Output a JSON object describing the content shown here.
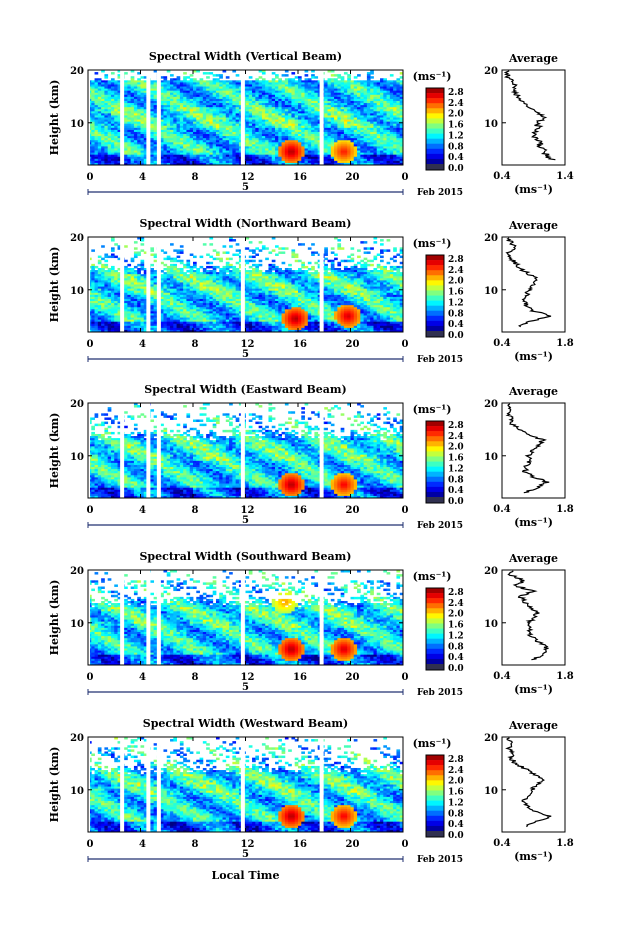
{
  "figure": {
    "xlabel": "Local Time",
    "ylabel": "Height (km)",
    "date_label": "Feb 2015",
    "day_label": "5",
    "x_ticks": [
      "0",
      "4",
      "8",
      "12",
      "16",
      "20",
      "0"
    ],
    "y_ticks": [
      "20",
      "10"
    ],
    "colorbar_unit": "(ms⁻¹)",
    "colorbar_ticks": [
      "2.8",
      "2.4",
      "2.0",
      "1.6",
      "1.2",
      "0.8",
      "0.4",
      "0.0"
    ],
    "profile_title": "Average",
    "profile_xlabel": "(ms⁻¹)",
    "profile_y_ticks": [
      "20",
      "10"
    ]
  },
  "chart_data": [
    {
      "type": "heatmap",
      "title": "Spectral Width (Vertical Beam)",
      "xlabel": "Local Time",
      "ylabel": "Height (km)",
      "xlim": [
        0,
        24
      ],
      "ylim": [
        2,
        20
      ],
      "colorbar": {
        "min": 0.0,
        "max": 3.0,
        "unit": "(ms⁻¹)"
      },
      "hotspots": [
        [
          15.5,
          4.5,
          2.9
        ],
        [
          19.5,
          4.5,
          2.6
        ]
      ],
      "profile": {
        "title": "Average",
        "xlim": [
          0.4,
          1.4
        ],
        "x_ticks": [
          "0.4",
          "1.4"
        ],
        "heights": [
          3,
          4,
          5,
          6,
          7,
          8,
          9,
          10,
          11,
          12,
          13,
          14,
          15,
          16,
          17,
          18,
          19,
          20
        ],
        "values": [
          1.2,
          1.1,
          1.05,
          1.0,
          0.95,
          0.9,
          0.95,
          1.0,
          1.05,
          1.0,
          0.85,
          0.7,
          0.65,
          0.6,
          0.65,
          0.55,
          0.5,
          0.45
        ]
      }
    },
    {
      "type": "heatmap",
      "title": "Spectral Width (Northward Beam)",
      "xlabel": "Local Time",
      "ylabel": "Height (km)",
      "xlim": [
        0,
        24
      ],
      "ylim": [
        2,
        20
      ],
      "colorbar": {
        "min": 0.0,
        "max": 3.0,
        "unit": "(ms⁻¹)"
      },
      "hotspots": [
        [
          15.8,
          4.5,
          2.9
        ],
        [
          19.8,
          5.0,
          2.8
        ]
      ],
      "profile": {
        "title": "Average",
        "xlim": [
          0.4,
          1.8
        ],
        "x_ticks": [
          "0.4",
          "1.8"
        ],
        "heights": [
          3,
          4,
          5,
          6,
          7,
          8,
          9,
          10,
          11,
          12,
          13,
          14,
          15,
          16,
          17,
          18,
          19,
          20
        ],
        "values": [
          0.8,
          1.0,
          1.5,
          1.1,
          0.95,
          0.9,
          0.95,
          1.0,
          1.1,
          1.2,
          1.0,
          0.8,
          0.7,
          0.6,
          0.5,
          0.7,
          0.6,
          0.5
        ]
      }
    },
    {
      "type": "heatmap",
      "title": "Spectral Width (Eastward Beam)",
      "xlabel": "Local Time",
      "ylabel": "Height (km)",
      "xlim": [
        0,
        24
      ],
      "ylim": [
        2,
        20
      ],
      "colorbar": {
        "min": 0.0,
        "max": 3.0,
        "unit": "(ms⁻¹)"
      },
      "hotspots": [
        [
          15.5,
          4.5,
          2.9
        ],
        [
          19.5,
          4.5,
          2.7
        ]
      ],
      "profile": {
        "title": "Average",
        "xlim": [
          0.4,
          1.8
        ],
        "x_ticks": [
          "0.4",
          "1.8"
        ],
        "heights": [
          3,
          4,
          5,
          6,
          7,
          8,
          9,
          10,
          11,
          12,
          13,
          14,
          15,
          16,
          17,
          18,
          19,
          20
        ],
        "values": [
          0.9,
          1.2,
          1.4,
          1.1,
          0.9,
          0.95,
          1.0,
          1.0,
          1.1,
          1.2,
          1.3,
          1.0,
          0.8,
          0.6,
          0.6,
          0.55,
          0.6,
          0.55
        ]
      }
    },
    {
      "type": "heatmap",
      "title": "Spectral Width (Southward Beam)",
      "xlabel": "Local Time",
      "ylabel": "Height (km)",
      "xlim": [
        0,
        24
      ],
      "ylim": [
        2,
        20
      ],
      "colorbar": {
        "min": 0.0,
        "max": 3.0,
        "unit": "(ms⁻¹)"
      },
      "hotspots": [
        [
          15.5,
          5.0,
          2.9
        ],
        [
          19.5,
          5.0,
          2.8
        ],
        [
          15.0,
          14.0,
          2.2
        ]
      ],
      "profile": {
        "title": "Average",
        "xlim": [
          0.4,
          1.8
        ],
        "x_ticks": [
          "0.4",
          "1.8"
        ],
        "heights": [
          3,
          4,
          5,
          6,
          7,
          8,
          9,
          10,
          11,
          12,
          13,
          14,
          15,
          16,
          17,
          18,
          19,
          20
        ],
        "values": [
          1.1,
          1.3,
          1.4,
          1.3,
          1.1,
          1.0,
          1.0,
          1.0,
          1.1,
          1.2,
          1.0,
          0.9,
          0.8,
          1.1,
          0.7,
          0.9,
          0.6,
          0.6
        ]
      }
    },
    {
      "type": "heatmap",
      "title": "Spectral Width (Westward Beam)",
      "xlabel": "Local Time",
      "ylabel": "Height (km)",
      "xlim": [
        0,
        24
      ],
      "ylim": [
        2,
        20
      ],
      "colorbar": {
        "min": 0.0,
        "max": 3.0,
        "unit": "(ms⁻¹)"
      },
      "hotspots": [
        [
          15.5,
          5.0,
          2.9
        ],
        [
          19.5,
          5.0,
          2.7
        ]
      ],
      "profile": {
        "title": "Average",
        "xlim": [
          0.4,
          1.8
        ],
        "x_ticks": [
          "0.4",
          "1.8"
        ],
        "heights": [
          3,
          4,
          5,
          6,
          7,
          8,
          9,
          10,
          11,
          12,
          13,
          14,
          15,
          16,
          17,
          18,
          19,
          20
        ],
        "values": [
          0.9,
          1.2,
          1.5,
          1.1,
          0.95,
          0.9,
          1.0,
          1.05,
          1.2,
          1.3,
          1.1,
          0.9,
          0.7,
          0.6,
          0.65,
          0.55,
          0.6,
          0.5
        ]
      }
    }
  ]
}
